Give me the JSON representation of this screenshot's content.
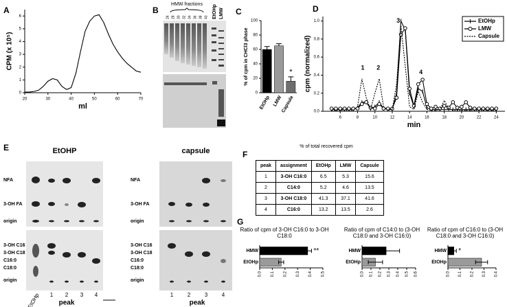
{
  "chart_data": [
    {
      "type": "line",
      "label": "A",
      "xlabel": "ml",
      "ylabel": "CPM (x 10⁵)",
      "x": [
        20,
        22,
        24,
        26,
        28,
        30,
        32,
        34,
        36,
        38,
        40,
        42,
        44,
        46,
        48,
        50,
        52,
        54,
        56,
        58,
        60,
        62,
        64,
        66,
        68,
        70
      ],
      "series": [
        {
          "color": "#000000",
          "values": [
            0.05,
            0.05,
            0.1,
            0.2,
            0.5,
            0.9,
            1.1,
            1.0,
            0.5,
            0.25,
            0.4,
            1.5,
            3.2,
            4.8,
            5.6,
            6.0,
            6.1,
            5.5,
            4.6,
            3.8,
            3.2,
            2.7,
            2.3,
            2.0,
            1.7,
            1.6
          ]
        }
      ],
      "xlim": [
        20,
        70
      ],
      "xticks": [
        20,
        30,
        40,
        50,
        60,
        70
      ],
      "ylim": [
        0,
        6.5
      ],
      "yticks": [
        0,
        1,
        2,
        3,
        4,
        5,
        6
      ]
    },
    {
      "type": "bar",
      "label": "C",
      "ylabel": "% of cpm in CHCl3 phase",
      "categories": [
        "EtOHp",
        "LMW",
        "Capsule"
      ],
      "values": [
        60,
        65,
        16
      ],
      "errors": [
        4,
        3,
        6
      ],
      "colors": [
        "#000000",
        "#9a9a9a",
        "#6e6e6e"
      ],
      "ylim": [
        0,
        100
      ],
      "yticks": [
        0,
        20,
        40,
        60,
        80,
        100
      ],
      "annotations": [
        "*"
      ]
    },
    {
      "type": "line",
      "label": "D",
      "xlabel": "min",
      "ylabel": "cpm (normalized)",
      "x": [
        5,
        5.5,
        6,
        6.5,
        7,
        7.5,
        8,
        8.5,
        9,
        9.5,
        10,
        10.5,
        11,
        11.5,
        12,
        12.5,
        13,
        13.5,
        14,
        14.5,
        15,
        15.5,
        16,
        16.5,
        17,
        17.5,
        18,
        18.5,
        19,
        19.5,
        20,
        20.5,
        21,
        21.5,
        22,
        22.5,
        23,
        23.5,
        24
      ],
      "series": [
        {
          "name": "EtOHp",
          "color": "#000000",
          "marker": "plus",
          "dash": false,
          "values": [
            0.02,
            0.02,
            0.02,
            0.02,
            0.02,
            0.02,
            0.04,
            0.1,
            0.1,
            0.03,
            0.05,
            0.1,
            0.03,
            0.02,
            0.02,
            0.2,
            1.0,
            0.9,
            0.2,
            0.05,
            0.25,
            0.22,
            0.04,
            0.02,
            0.02,
            0.02,
            0.02,
            0.02,
            0.02,
            0.02,
            0.02,
            0.02,
            0.02,
            0.02,
            0.02,
            0.02,
            0.02,
            0.02,
            0.02
          ]
        },
        {
          "name": "LMW",
          "color": "#000000",
          "marker": "circle",
          "dash": false,
          "values": [
            0.03,
            0.03,
            0.03,
            0.03,
            0.03,
            0.03,
            0.03,
            0.08,
            0.1,
            0.04,
            0.03,
            0.08,
            0.03,
            0.03,
            0.03,
            0.15,
            0.85,
            0.92,
            0.25,
            0.06,
            0.3,
            0.35,
            0.08,
            0.03,
            0.05,
            0.03,
            0.06,
            0.04,
            0.1,
            0.04,
            0.05,
            0.1,
            0.04,
            0.03,
            0.03,
            0.03,
            0.03,
            0.03,
            0.03
          ]
        },
        {
          "name": "Capsule",
          "color": "#000000",
          "marker": "none",
          "dash": true,
          "values": [
            0.01,
            0.01,
            0.01,
            0.01,
            0.01,
            0.01,
            0.05,
            0.36,
            0.15,
            0.02,
            0.2,
            0.36,
            0.05,
            0.01,
            0.02,
            0.3,
            0.95,
            0.5,
            0.05,
            0.02,
            0.22,
            0.1,
            0.02,
            0.01,
            0.01,
            0.02,
            0.12,
            0.03,
            0.01,
            0.01,
            0.01,
            0.01,
            0.01,
            0.01,
            0.01,
            0.01,
            0.01,
            0.01,
            0.01
          ]
        }
      ],
      "xlim": [
        4,
        25
      ],
      "xticks": [
        6,
        8,
        10,
        12,
        14,
        16,
        18,
        20,
        22,
        24
      ],
      "ylim": [
        0,
        1.05
      ],
      "yticks": [
        {
          "value": 0,
          "label": "0.0"
        },
        0.2,
        0.4,
        0.6,
        0.8,
        {
          "value": 1,
          "label": "1.0"
        }
      ],
      "legend": "top-right",
      "annotations": [
        "1",
        "2",
        "3",
        "4"
      ]
    },
    {
      "type": "hbar",
      "title": "Ratio of cpm of 3-OH C16:0 to 3-OH C18:0",
      "categories": [
        "HMW",
        "EtOHp"
      ],
      "values": [
        0.38,
        0.17
      ],
      "errors": [
        0.03,
        0.02
      ],
      "colors": [
        "#000000",
        "#9a9a9a"
      ],
      "xlim": [
        0,
        0.5
      ],
      "xticks": [
        {
          "value": 0,
          "label": "0.0"
        },
        0.1,
        0.2,
        0.3,
        0.4,
        0.5
      ],
      "annotations": [
        "**"
      ]
    },
    {
      "type": "hbar",
      "title": "Ratio of cpm of C14:0 to (3-OH C18:0 and 3-OH C16:0)",
      "categories": [
        "HMW",
        "EtOHp"
      ],
      "values": [
        0.27,
        0.15
      ],
      "errors": [
        0.15,
        0.08
      ],
      "colors": [
        "#000000",
        "#9a9a9a"
      ],
      "xlim": [
        0,
        0.6
      ],
      "xticks": [
        {
          "value": 0,
          "label": "0.0"
        },
        0.1,
        0.2,
        0.3,
        0.4,
        0.5,
        0.6
      ]
    },
    {
      "type": "hbar",
      "title": "Ratio of cpm of C16:0 to (3-OH C18:0 and 3-OH C16:0)",
      "categories": [
        "HMW",
        "EtOHp"
      ],
      "values": [
        0.05,
        0.28
      ],
      "errors": [
        0.02,
        0.05
      ],
      "colors": [
        "#000000",
        "#9a9a9a"
      ],
      "xlim": [
        0,
        0.4
      ],
      "xticks": [
        {
          "value": 0,
          "label": "0.0"
        },
        0.1,
        0.2,
        0.3,
        0.4
      ],
      "annotations": [
        "*"
      ]
    }
  ],
  "panel_b": {
    "label": "B",
    "header": "HMW fractions",
    "lanes": [
      "26",
      "28",
      "30",
      "32",
      "34",
      "36",
      "38",
      "40"
    ],
    "extra_lanes": [
      "EtOHp",
      "LMW"
    ]
  },
  "panel_e": {
    "label": "E",
    "gels": [
      {
        "title": "EtOHP",
        "top_labels": [
          "NFA",
          "3-OH FA",
          "origin"
        ],
        "bottom_labels": [
          "3-OH C16",
          "3-OH C18",
          "C16:0",
          "C18:0",
          "origin"
        ],
        "lanes": [
          "EtOHp",
          "1",
          "2",
          "3",
          "4"
        ],
        "xlabel": "peak"
      },
      {
        "title": "capsule",
        "top_labels": [
          "NFA",
          "3-OH FA",
          "origin"
        ],
        "bottom_labels": [
          "3-OH C16",
          "3-OH C18",
          "C16:0",
          "C18:0",
          "origin"
        ],
        "lanes": [
          "1",
          "2",
          "3",
          "4"
        ],
        "xlabel": "peak"
      }
    ]
  },
  "panel_f": {
    "label": "F",
    "caption": "% of total recovered cpm",
    "table": {
      "header": [
        "peak",
        "assignment",
        "EtOHp",
        "LMW",
        "Capsule"
      ],
      "rows": [
        [
          1,
          "3-OH C16:0",
          6.5,
          5.3,
          15.6
        ],
        [
          2,
          "C14:0",
          5.2,
          4.6,
          13.5
        ],
        [
          3,
          "3-OH C18:0",
          41.3,
          37.1,
          41.6
        ],
        [
          4,
          "C16:0",
          13.2,
          13.5,
          2.6
        ]
      ]
    }
  },
  "panel_g": {
    "label": "G"
  }
}
